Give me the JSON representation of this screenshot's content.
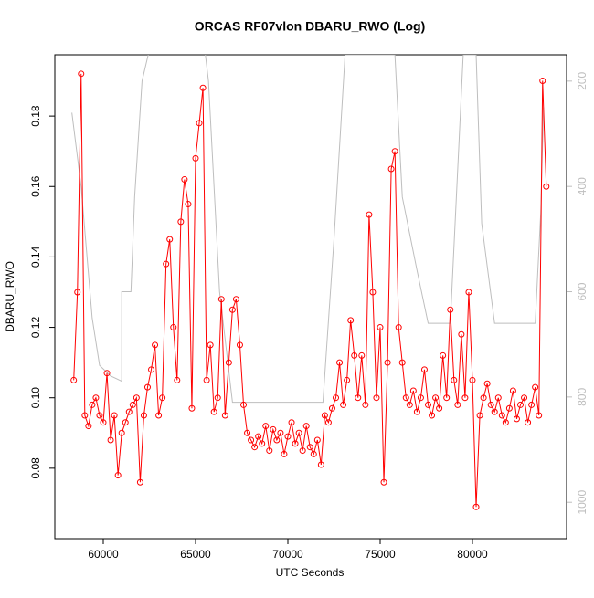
{
  "chart_data": {
    "type": "line",
    "title": "ORCAS RF07vlon DBARU_RWO (Log)",
    "xlabel": "UTC Seconds",
    "ylabel": "DBARU_RWO",
    "xlim": [
      57376,
      85100
    ],
    "ylim": [
      0.06,
      0.1974
    ],
    "y2lim": [
      1069,
      150
    ],
    "xticks": [
      60000,
      65000,
      70000,
      75000,
      80000
    ],
    "yticks": [
      0.08,
      {
        "value": 0.1,
        "label": "0.10"
      },
      0.12,
      0.14,
      0.16,
      0.18
    ],
    "y2ticks": [
      200,
      400,
      600,
      800,
      1000
    ],
    "series": [
      {
        "color": "#ff0000",
        "markers": true,
        "x": [
          58400,
          58600,
          58800,
          59000,
          59200,
          59400,
          59600,
          59800,
          60000,
          60200,
          60400,
          60600,
          60800,
          61000,
          61200,
          61400,
          61600,
          61800,
          62000,
          62200,
          62400,
          62600,
          62800,
          63000,
          63200,
          63400,
          63600,
          63800,
          64000,
          64200,
          64400,
          64600,
          64800,
          65000,
          65200,
          65400,
          65600,
          65800,
          66000,
          66200,
          66400,
          66600,
          66800,
          67000,
          67200,
          67400,
          67600,
          67800,
          68000,
          68200,
          68400,
          68600,
          68800,
          69000,
          69200,
          69400,
          69600,
          69800,
          70000,
          70200,
          70400,
          70600,
          70800,
          71000,
          71200,
          71400,
          71600,
          71800,
          72000,
          72200,
          72400,
          72600,
          72800,
          73000,
          73200,
          73400,
          73600,
          73800,
          74000,
          74200,
          74400,
          74600,
          74800,
          75000,
          75200,
          75400,
          75600,
          75800,
          76000,
          76200,
          76400,
          76600,
          76800,
          77000,
          77200,
          77400,
          77600,
          77800,
          78000,
          78200,
          78400,
          78600,
          78800,
          79000,
          79200,
          79400,
          79600,
          79800,
          80000,
          80200,
          80400,
          80600,
          80800,
          81000,
          81200,
          81400,
          81600,
          81800,
          82000,
          82200,
          82400,
          82600,
          82800,
          83000,
          83200,
          83400,
          83600,
          83800,
          84000
        ],
        "values": [
          0.105,
          0.13,
          0.192,
          0.095,
          0.092,
          0.098,
          0.1,
          0.095,
          0.093,
          0.107,
          0.088,
          0.095,
          0.078,
          0.09,
          0.093,
          0.096,
          0.098,
          0.1,
          0.076,
          0.095,
          0.103,
          0.108,
          0.115,
          0.095,
          0.1,
          0.138,
          0.145,
          0.12,
          0.105,
          0.15,
          0.162,
          0.155,
          0.097,
          0.168,
          0.178,
          0.188,
          0.105,
          0.115,
          0.096,
          0.1,
          0.128,
          0.095,
          0.11,
          0.125,
          0.128,
          0.115,
          0.098,
          0.09,
          0.088,
          0.086,
          0.089,
          0.087,
          0.092,
          0.085,
          0.091,
          0.088,
          0.09,
          0.084,
          0.089,
          0.093,
          0.087,
          0.09,
          0.085,
          0.092,
          0.086,
          0.084,
          0.088,
          0.081,
          0.095,
          0.093,
          0.097,
          0.1,
          0.11,
          0.098,
          0.105,
          0.122,
          0.112,
          0.1,
          0.112,
          0.098,
          0.152,
          0.13,
          0.1,
          0.12,
          0.076,
          0.11,
          0.165,
          0.17,
          0.12,
          0.11,
          0.1,
          0.098,
          0.102,
          0.096,
          0.1,
          0.108,
          0.098,
          0.095,
          0.1,
          0.097,
          0.112,
          0.1,
          0.125,
          0.105,
          0.098,
          0.118,
          0.1,
          0.13,
          0.105,
          0.069,
          0.095,
          0.1,
          0.104,
          0.098,
          0.096,
          0.1,
          0.095,
          0.093,
          0.097,
          0.102,
          0.094,
          0.098,
          0.1,
          0.093,
          0.098,
          0.103,
          0.095,
          0.19,
          0.16
        ]
      },
      {
        "color": "#bebebe",
        "axis": "y2",
        "x": [
          58300,
          58800,
          59400,
          59800,
          60400,
          61000,
          61000,
          61500,
          61700,
          62100,
          62500,
          65500,
          65700,
          66300,
          67000,
          71900,
          72500,
          73100,
          75800,
          76200,
          77000,
          77600,
          78800,
          79500,
          80200,
          80500,
          81200,
          83400,
          83700,
          83850
        ],
        "values": [
          260,
          400,
          650,
          740,
          760,
          770,
          600,
          600,
          420,
          200,
          140,
          140,
          200,
          600,
          810,
          810,
          500,
          150,
          150,
          420,
          560,
          660,
          660,
          150,
          150,
          470,
          660,
          660,
          450,
          250
        ]
      }
    ]
  }
}
